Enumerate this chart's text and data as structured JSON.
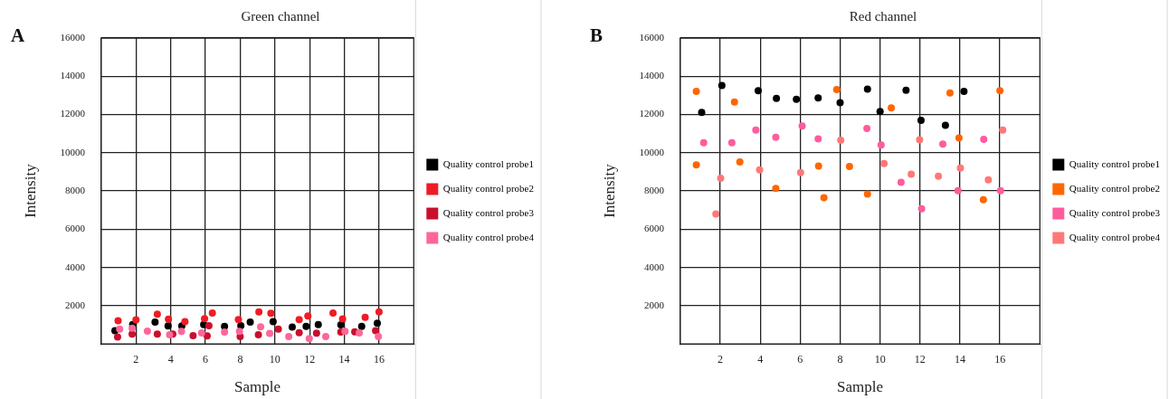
{
  "chart_data": [
    {
      "type": "scatter",
      "title": "Green channel",
      "xlabel": "Sample",
      "ylabel": "Intensity",
      "annotations": [
        "A"
      ],
      "xlim": [
        0,
        18
      ],
      "xticks": [
        2,
        4,
        6,
        8,
        10,
        12,
        14,
        16
      ],
      "ylim": [
        0,
        16000
      ],
      "yticks": [
        2000,
        4000,
        6000,
        8000,
        10000,
        12000,
        14000,
        16000
      ],
      "grid": true,
      "legend": "right",
      "marker": "circle",
      "series": [
        {
          "name": "Quality control probe1",
          "color": "#000000",
          "x": [
            0.79,
            1.81,
            3.1,
            3.85,
            4.64,
            5.9,
            7.1,
            8.04,
            8.58,
            9.9,
            11.0,
            11.8,
            12.5,
            13.8,
            15.0,
            15.9
          ],
          "values": [
            700,
            1010,
            1140,
            940,
            940,
            1010,
            920,
            950,
            1140,
            1170,
            880,
            920,
            1010,
            1000,
            920,
            1080
          ]
        },
        {
          "name": "Quality control probe2",
          "color": "#ee1c25",
          "x": [
            0.97,
            2.0,
            3.23,
            3.87,
            4.82,
            5.95,
            6.4,
            7.9,
            9.08,
            9.77,
            11.4,
            11.9,
            13.35,
            13.9,
            15.2,
            16.0
          ],
          "values": [
            1220,
            1260,
            1560,
            1300,
            1170,
            1320,
            1620,
            1280,
            1680,
            1610,
            1280,
            1470,
            1620,
            1310,
            1390,
            1680
          ]
        },
        {
          "name": "Quality control probe3",
          "color": "#c8102e",
          "x": [
            0.94,
            1.78,
            3.23,
            4.12,
            5.29,
            6.2,
            6.1,
            8.0,
            9.05,
            10.2,
            11.4,
            12.4,
            13.8,
            14.6,
            15.8
          ],
          "values": [
            360,
            520,
            520,
            520,
            440,
            950,
            420,
            390,
            480,
            780,
            590,
            560,
            620,
            640,
            700
          ]
        },
        {
          "name": "Quality control probe4",
          "color": "#ff6699",
          "x": [
            1.06,
            1.78,
            2.66,
            3.94,
            4.62,
            5.78,
            7.1,
            7.96,
            9.18,
            9.7,
            10.8,
            11.98,
            12.93,
            14.04,
            14.86,
            15.96
          ],
          "values": [
            780,
            830,
            670,
            480,
            660,
            580,
            620,
            660,
            900,
            550,
            390,
            280,
            390,
            660,
            580,
            390
          ]
        }
      ]
    },
    {
      "type": "scatter",
      "title": "Red channel",
      "xlabel": "Sample",
      "ylabel": "Intensity",
      "annotations": [
        "B"
      ],
      "xlim": [
        0,
        18
      ],
      "xticks": [
        2,
        4,
        6,
        8,
        10,
        12,
        14,
        16
      ],
      "ylim": [
        0,
        16000
      ],
      "yticks": [
        2000,
        4000,
        6000,
        8000,
        10000,
        12000,
        14000,
        16000
      ],
      "grid": true,
      "legend": "right",
      "marker": "circle",
      "series": [
        {
          "name": "Quality control probe1",
          "color": "#000000",
          "x": [
            1.07,
            2.08,
            3.9,
            4.81,
            5.81,
            6.9,
            8.0,
            9.37,
            10.0,
            11.3,
            12.05,
            13.27,
            14.2
          ],
          "values": [
            12110,
            13520,
            13240,
            12840,
            12800,
            12870,
            12620,
            13330,
            12160,
            13270,
            11700,
            11430,
            13210
          ]
        },
        {
          "name": "Quality control probe2",
          "color": "#ff6600",
          "x": [
            0.8,
            2.71,
            7.83,
            10.56,
            13.5,
            16.0,
            13.95,
            0.8,
            2.98,
            4.78,
            6.92,
            7.19,
            8.47,
            9.37,
            15.17
          ],
          "values": [
            13210,
            12650,
            13300,
            12350,
            13130,
            13240,
            10770,
            9360,
            9520,
            8130,
            9310,
            7650,
            9280,
            7840,
            7540
          ]
        },
        {
          "name": "Quality control probe3",
          "color": "#ff5c9d",
          "x": [
            1.17,
            2.58,
            3.78,
            4.78,
            6.1,
            6.9,
            9.34,
            10.05,
            13.14,
            15.19,
            11.05,
            12.08,
            13.9,
            16.03
          ],
          "values": [
            10520,
            10520,
            11190,
            10810,
            11400,
            10720,
            11270,
            10400,
            10450,
            10700,
            8460,
            7070,
            8020,
            8020
          ]
        },
        {
          "name": "Quality control probe4",
          "color": "#ff7878",
          "x": [
            8.03,
            11.98,
            16.14,
            2.02,
            1.78,
            3.97,
            6.02,
            10.2,
            11.56,
            12.92,
            14.02,
            15.42
          ],
          "values": [
            10650,
            10680,
            11190,
            8670,
            6800,
            9100,
            8960,
            9440,
            8880,
            8770,
            9200,
            8580
          ]
        }
      ]
    }
  ]
}
